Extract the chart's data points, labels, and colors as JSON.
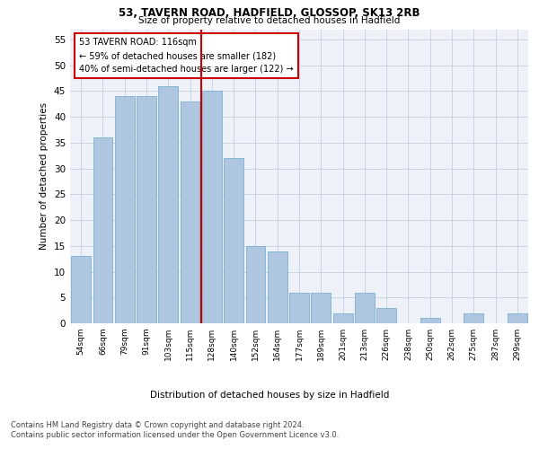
{
  "title1": "53, TAVERN ROAD, HADFIELD, GLOSSOP, SK13 2RB",
  "title2": "Size of property relative to detached houses in Hadfield",
  "xlabel": "Distribution of detached houses by size in Hadfield",
  "ylabel": "Number of detached properties",
  "categories": [
    "54sqm",
    "66sqm",
    "79sqm",
    "91sqm",
    "103sqm",
    "115sqm",
    "128sqm",
    "140sqm",
    "152sqm",
    "164sqm",
    "177sqm",
    "189sqm",
    "201sqm",
    "213sqm",
    "226sqm",
    "238sqm",
    "250sqm",
    "262sqm",
    "275sqm",
    "287sqm",
    "299sqm"
  ],
  "values": [
    13,
    36,
    44,
    44,
    46,
    43,
    45,
    32,
    15,
    14,
    6,
    6,
    2,
    6,
    3,
    0,
    1,
    0,
    2,
    0,
    2
  ],
  "bar_color": "#aec6e0",
  "bar_edge_color": "#7aafd4",
  "marker_color": "#cc0000",
  "marker_label": "53 TAVERN ROAD: 116sqm",
  "annotation_line1": "← 59% of detached houses are smaller (182)",
  "annotation_line2": "40% of semi-detached houses are larger (122) →",
  "ylim": [
    0,
    57
  ],
  "yticks": [
    0,
    5,
    10,
    15,
    20,
    25,
    30,
    35,
    40,
    45,
    50,
    55
  ],
  "footer1": "Contains HM Land Registry data © Crown copyright and database right 2024.",
  "footer2": "Contains public sector information licensed under the Open Government Licence v3.0.",
  "bg_color": "#eef2f8",
  "grid_color": "#c8d4e4"
}
